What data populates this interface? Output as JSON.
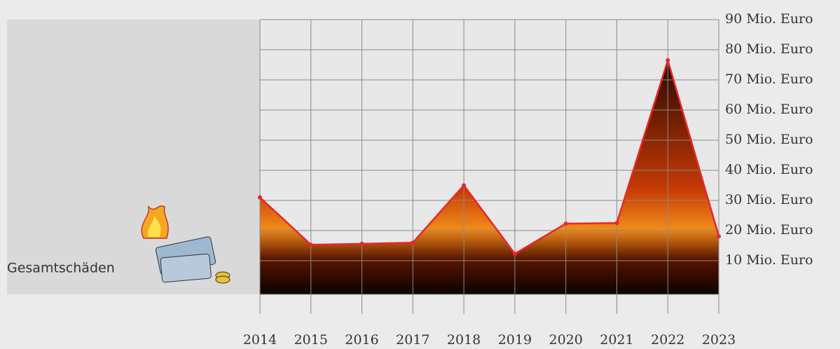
{
  "chart_data": {
    "type": "area",
    "label": "Gesamtschäden",
    "categories": [
      "2014",
      "2015",
      "2016",
      "2017",
      "2018",
      "2019",
      "2020",
      "2021",
      "2022",
      "2023"
    ],
    "values": [
      31,
      15.3,
      15.6,
      16,
      35,
      12.3,
      22.3,
      22.5,
      76.5,
      18.1
    ],
    "color": "#e8262a",
    "ylim": [
      0,
      90
    ],
    "yticks": [
      {
        "value": 10,
        "label": "10 Mio. Euro"
      },
      {
        "value": 20,
        "label": "20 Mio. Euro"
      },
      {
        "value": 30,
        "label": "30 Mio. Euro"
      },
      {
        "value": 40,
        "label": "40 Mio. Euro"
      },
      {
        "value": 50,
        "label": "50 Mio. Euro"
      },
      {
        "value": 60,
        "label": "60 Mio. Euro"
      },
      {
        "value": 70,
        "label": "70 Mio. Euro"
      },
      {
        "value": 80,
        "label": "80 Mio. Euro"
      },
      {
        "value": 90,
        "label": "90 Mio. Euro"
      }
    ],
    "grid": true
  }
}
